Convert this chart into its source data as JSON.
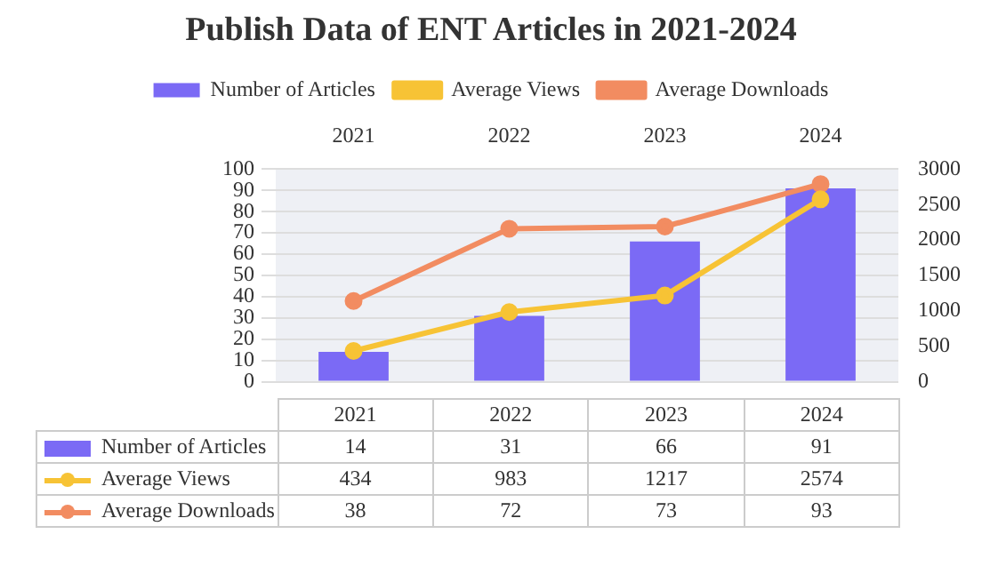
{
  "chart_data": {
    "type": "bar",
    "title": "Publish Data of ENT Articles in 2021-2024",
    "categories": [
      "2021",
      "2022",
      "2023",
      "2024"
    ],
    "series": [
      {
        "name": "Number of Articles",
        "color": "#7b6af5",
        "values": [
          14,
          31,
          66,
          91
        ]
      },
      {
        "name": "Average Views",
        "type": "line",
        "axis": "y2",
        "color": "#f7c335",
        "values": [
          434,
          983,
          1217,
          2574
        ]
      },
      {
        "name": "Average Downloads",
        "type": "line",
        "color": "#f28c61",
        "values": [
          38,
          72,
          73,
          93
        ]
      }
    ],
    "ylim": [
      0,
      100
    ],
    "yticks": [
      0,
      10,
      20,
      30,
      40,
      50,
      60,
      70,
      80,
      90,
      100
    ],
    "y2lim": [
      0,
      3000
    ],
    "y2ticks": [
      0,
      500,
      1000,
      1500,
      2000,
      2500,
      3000
    ],
    "grid": "y",
    "legend": "top",
    "marker": "circle",
    "data_labels": true
  }
}
